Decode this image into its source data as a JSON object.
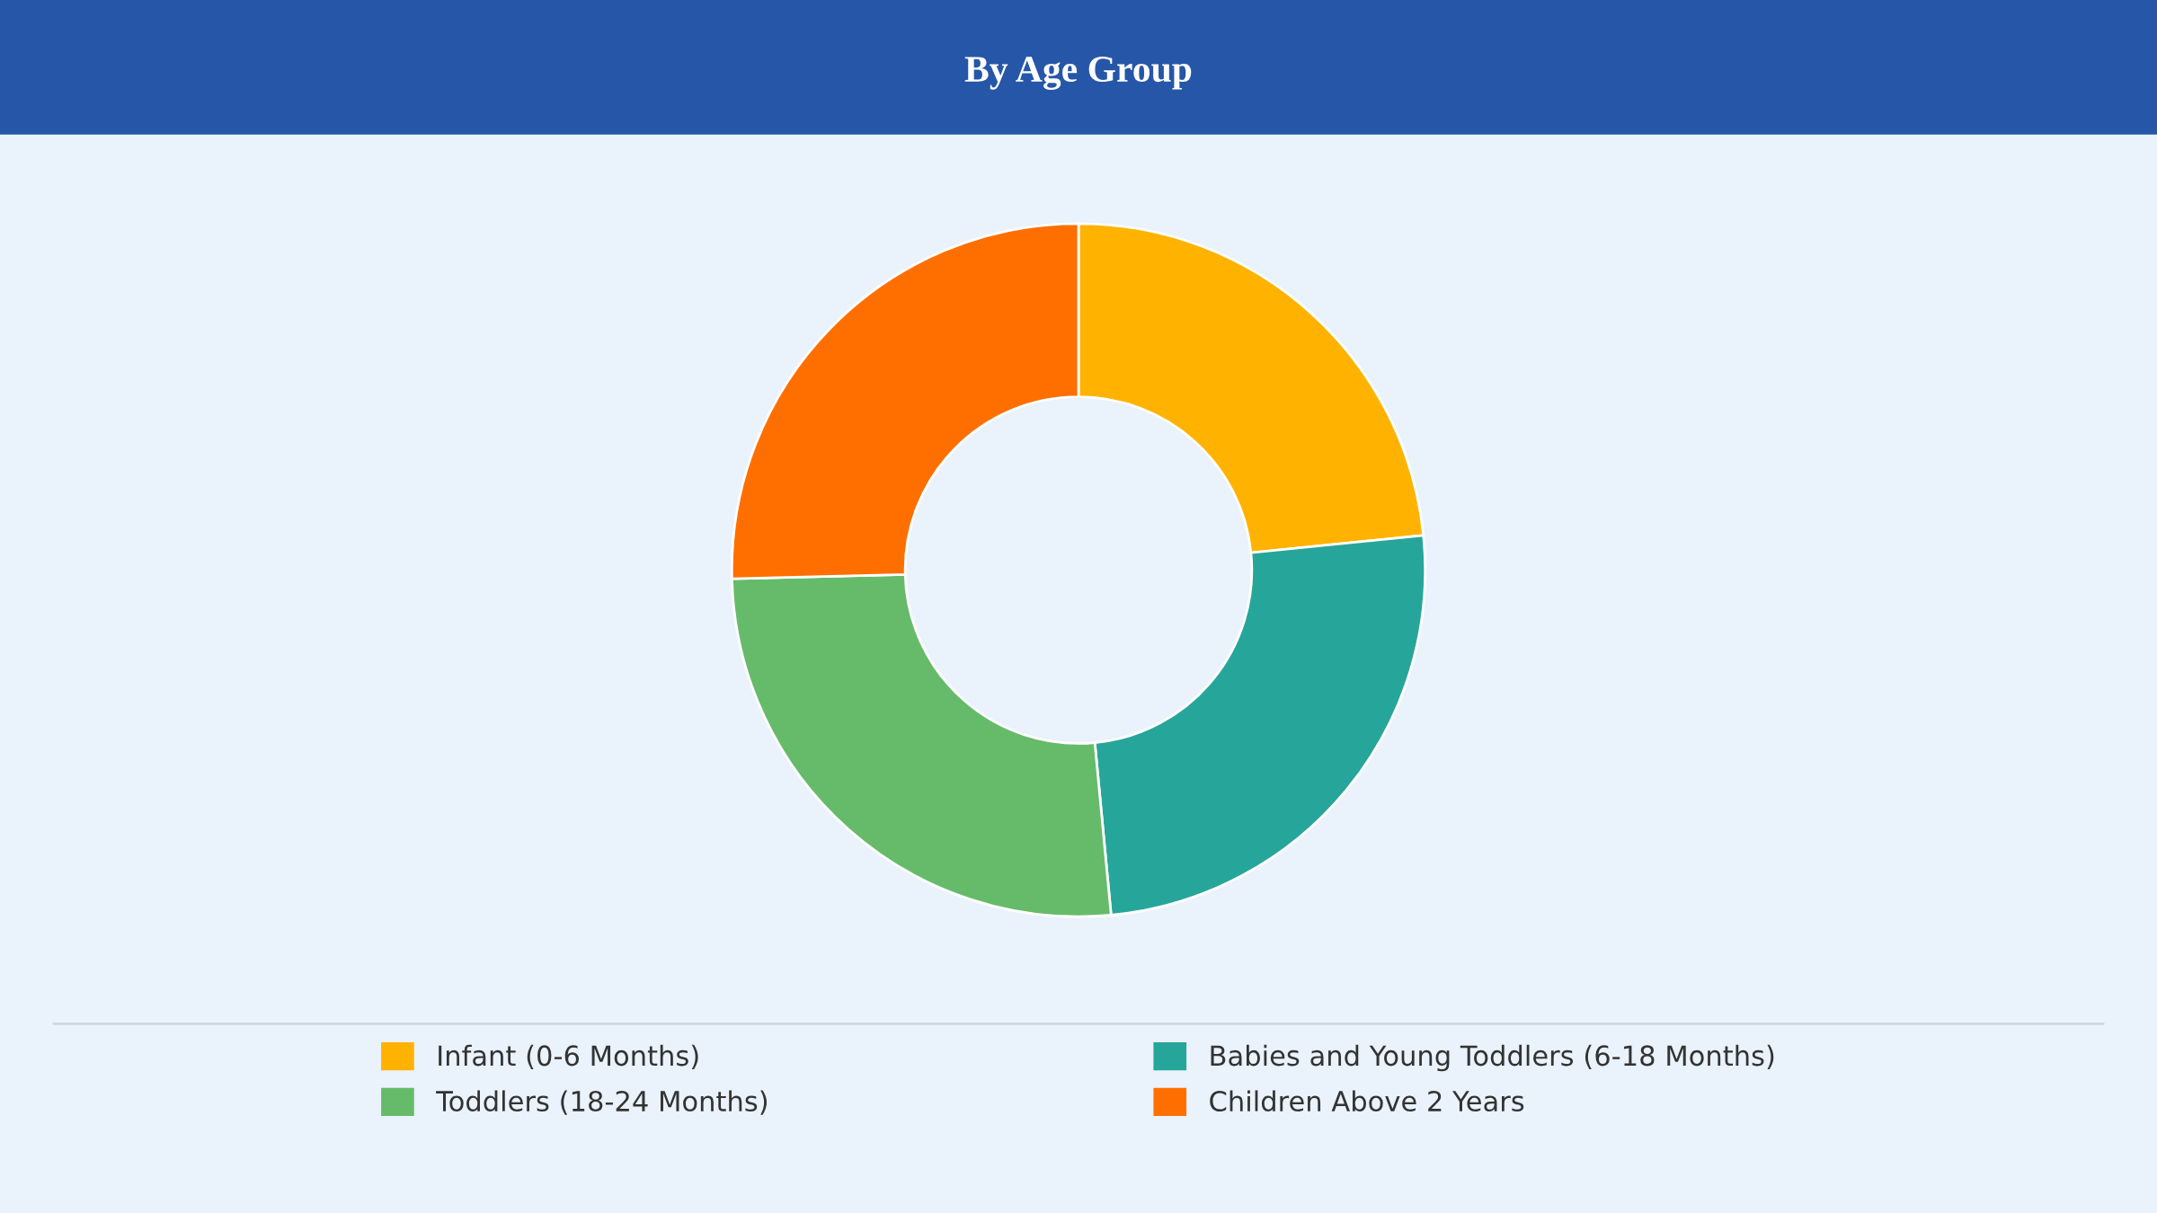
{
  "chart_data": {
    "type": "donut",
    "title": "By Age Group",
    "categories": [
      "Infant (0-6 Months)",
      "Babies and Young Toddlers (6-18 Months)",
      "Toddlers (18-24 Months)",
      "Children Above 2 Years"
    ],
    "values": [
      23.4,
      25.1,
      26.1,
      25.4
    ],
    "colors": [
      "#ffb300",
      "#26a69a",
      "#66bb6a",
      "#ff6f00"
    ],
    "legend": "bottom"
  }
}
